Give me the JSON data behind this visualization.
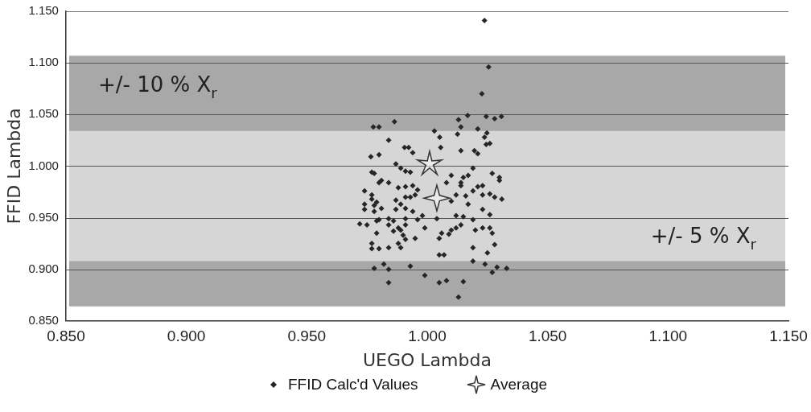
{
  "chart_data": {
    "type": "scatter",
    "xlabel": "UEGO Lambda",
    "ylabel": "FFID Lambda",
    "xlim": [
      0.85,
      1.15
    ],
    "ylim": [
      0.85,
      1.15
    ],
    "xticks": [
      {
        "value": 0.85,
        "label": "0.850"
      },
      {
        "value": 0.9,
        "label": "0.900"
      },
      {
        "value": 0.95,
        "label": "0.950"
      },
      {
        "value": 1.0,
        "label": "1.000"
      },
      {
        "value": 1.05,
        "label": "1.050"
      },
      {
        "value": 1.1,
        "label": "1.100"
      },
      {
        "value": 1.15,
        "label": "1.150"
      }
    ],
    "yticks": [
      {
        "value": 0.85,
        "label": "0.850"
      },
      {
        "value": 0.9,
        "label": "0.900"
      },
      {
        "value": 0.95,
        "label": "0.950"
      },
      {
        "value": 1.0,
        "label": "1.000"
      },
      {
        "value": 1.05,
        "label": "1.050"
      },
      {
        "value": 1.1,
        "label": "1.100"
      },
      {
        "value": 1.15,
        "label": "1.150"
      }
    ],
    "grid": "y",
    "legend": "bottom",
    "bands": [
      {
        "axis": "y",
        "from": 0.864,
        "to": 1.107,
        "label": "+/- 10 % X$_{r}$",
        "color": "#a8a8a8"
      },
      {
        "axis": "y",
        "from": 0.908,
        "to": 1.034,
        "label": "+/- 5 % X$_{r}$",
        "color": "#d6d6d6"
      }
    ],
    "series": [
      {
        "name": "FFID Calc'd Values",
        "color": "#262626",
        "marker": "diamond",
        "x": [
          1.0238,
          1.0255,
          1.0227,
          1.0168,
          1.013,
          1.0245,
          1.028,
          1.0308,
          0.9864,
          0.9776,
          0.98,
          1.014,
          1.021,
          1.003,
          1.0126,
          1.0248,
          1.0238,
          1.0052,
          0.984,
          0.9906,
          0.9923,
          1.0245,
          1.026,
          1.014,
          1.0056,
          0.98,
          0.994,
          1.0196,
          1.021,
          0.9766,
          0.987,
          0.989,
          0.991,
          0.993,
          0.977,
          0.978,
          0.981,
          0.98,
          0.984,
          0.988,
          0.991,
          0.994,
          0.996,
          0.974,
          0.977,
          0.977,
          0.979,
          0.974,
          0.978,
          0.974,
          0.978,
          0.981,
          0.987,
          0.989,
          0.991,
          0.993,
          0.995,
          0.987,
          0.991,
          0.984,
          0.986,
          0.991,
          0.994,
          0.998,
          0.996,
          0.972,
          0.975,
          0.979,
          0.98,
          0.984,
          0.988,
          0.991,
          0.989,
          0.979,
          0.986,
          0.99,
          0.991,
          0.995,
          0.999,
          1.004,
          1.006,
          1.009,
          1.01,
          1.012,
          1.014,
          1.015,
          1.012,
          1.019,
          1.02,
          1.023,
          1.026,
          1.027,
          1.026,
          1.023,
          1.017,
          1.016,
          1.019,
          1.01,
          1.012,
          1.008,
          1.01,
          1.014,
          1.014,
          1.015,
          1.017,
          1.019,
          1.021,
          1.023,
          1.023,
          1.026,
          1.028,
          1.031,
          1.03,
          1.027,
          1.03,
          0.977,
          0.977,
          0.98,
          0.984,
          0.988,
          0.989,
          1.019,
          1.025,
          1.028,
          0.978,
          0.982,
          0.984,
          0.993,
          0.999,
          1.005,
          1.007,
          1.005,
          1.008,
          1.015,
          1.019,
          1.024,
          1.027,
          1.029,
          1.033,
          0.984,
          1.013,
          1.005
        ],
        "values": [
          1.141,
          1.096,
          1.07,
          1.049,
          1.045,
          1.048,
          1.046,
          1.048,
          1.043,
          1.038,
          1.038,
          1.038,
          1.036,
          1.034,
          1.031,
          1.032,
          1.028,
          1.028,
          1.025,
          1.018,
          1.018,
          1.021,
          1.022,
          1.015,
          1.018,
          1.011,
          1.013,
          1.015,
          1.012,
          1.009,
          1.002,
          0.998,
          0.995,
          0.994,
          0.994,
          0.993,
          0.986,
          0.984,
          0.984,
          0.979,
          0.98,
          0.981,
          0.977,
          0.976,
          0.972,
          0.968,
          0.965,
          0.963,
          0.962,
          0.958,
          0.956,
          0.959,
          0.967,
          0.963,
          0.97,
          0.97,
          0.972,
          0.958,
          0.959,
          0.949,
          0.947,
          0.949,
          0.956,
          0.952,
          0.948,
          0.944,
          0.943,
          0.947,
          0.948,
          0.943,
          0.94,
          0.943,
          0.938,
          0.935,
          0.937,
          0.933,
          0.929,
          0.93,
          0.94,
          0.949,
          0.935,
          0.934,
          0.938,
          0.94,
          0.943,
          0.951,
          0.952,
          0.948,
          0.938,
          0.94,
          0.94,
          0.935,
          0.953,
          0.958,
          0.963,
          0.971,
          0.976,
          0.966,
          0.972,
          0.984,
          0.991,
          0.984,
          0.981,
          0.989,
          0.991,
          0.998,
          0.98,
          0.981,
          0.972,
          0.973,
          0.97,
          0.968,
          0.989,
          0.993,
          0.986,
          0.925,
          0.92,
          0.92,
          0.921,
          0.925,
          0.921,
          0.921,
          0.916,
          0.924,
          0.901,
          0.905,
          0.9,
          0.903,
          0.894,
          0.914,
          0.914,
          0.887,
          0.889,
          0.888,
          0.908,
          0.905,
          0.897,
          0.902,
          0.901,
          0.887,
          0.873,
          0.93
        ]
      },
      {
        "name": "Average",
        "color": "#333333",
        "marker": "star",
        "x": [
          1.001,
          1.004
        ],
        "values": [
          1.002,
          0.969
        ]
      }
    ]
  }
}
